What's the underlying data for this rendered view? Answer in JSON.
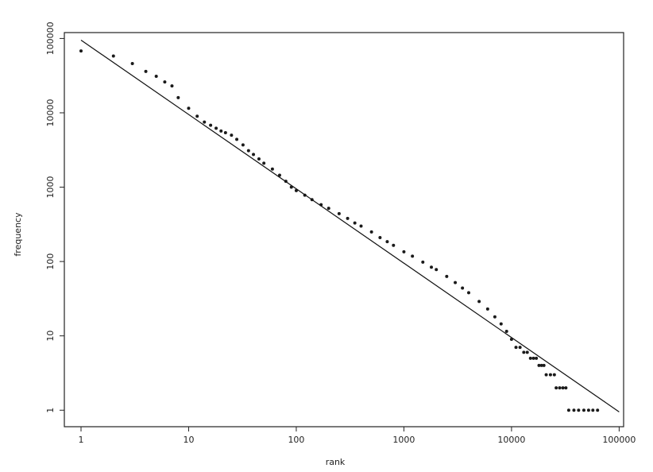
{
  "chart_data": {
    "type": "scatter",
    "title": "",
    "xlabel": "rank",
    "ylabel": "frequency",
    "xscale": "log",
    "yscale": "log",
    "xlim": [
      0.7,
      110000
    ],
    "ylim": [
      0.6,
      120000
    ],
    "grid": false,
    "legend": "none",
    "colors": {
      "points": "#1a1a1a",
      "line": "#111111",
      "frame": "#222222"
    },
    "x_ticks": [
      {
        "value": 1,
        "label": "1"
      },
      {
        "value": 10,
        "label": "10"
      },
      {
        "value": 100,
        "label": "100"
      },
      {
        "value": 1000,
        "label": "1000"
      },
      {
        "value": 10000,
        "label": "10000"
      },
      {
        "value": 100000,
        "label": "100000"
      }
    ],
    "y_ticks": [
      {
        "value": 1,
        "label": "1"
      },
      {
        "value": 10,
        "label": "10"
      },
      {
        "value": 100,
        "label": "100"
      },
      {
        "value": 1000,
        "label": "1000"
      },
      {
        "value": 10000,
        "label": "10000"
      },
      {
        "value": 100000,
        "label": "100000"
      }
    ],
    "fit_line": {
      "x": [
        1,
        100000
      ],
      "y": [
        95000,
        0.95
      ]
    },
    "series": [
      {
        "points": [
          [
            1,
            68000
          ],
          [
            2,
            58000
          ],
          [
            3,
            46000
          ],
          [
            4,
            36000
          ],
          [
            5,
            31000
          ],
          [
            6,
            26000
          ],
          [
            7,
            23000
          ],
          [
            8,
            16000
          ],
          [
            10,
            11500
          ],
          [
            12,
            9000
          ],
          [
            14,
            7500
          ],
          [
            16,
            6800
          ],
          [
            18,
            6200
          ],
          [
            20,
            5700
          ],
          [
            22,
            5400
          ],
          [
            25,
            5000
          ],
          [
            28,
            4400
          ],
          [
            32,
            3700
          ],
          [
            36,
            3100
          ],
          [
            40,
            2750
          ],
          [
            45,
            2400
          ],
          [
            50,
            2100
          ],
          [
            60,
            1750
          ],
          [
            70,
            1450
          ],
          [
            80,
            1200
          ],
          [
            90,
            1000
          ],
          [
            100,
            900
          ],
          [
            120,
            780
          ],
          [
            140,
            680
          ],
          [
            170,
            580
          ],
          [
            200,
            520
          ],
          [
            250,
            440
          ],
          [
            300,
            380
          ],
          [
            350,
            330
          ],
          [
            400,
            300
          ],
          [
            500,
            250
          ],
          [
            600,
            210
          ],
          [
            700,
            185
          ],
          [
            800,
            165
          ],
          [
            1000,
            135
          ],
          [
            1200,
            118
          ],
          [
            1500,
            98
          ],
          [
            1800,
            84
          ],
          [
            2000,
            78
          ],
          [
            2500,
            63
          ],
          [
            3000,
            52
          ],
          [
            3500,
            44
          ],
          [
            4000,
            38
          ],
          [
            5000,
            29
          ],
          [
            6000,
            23
          ],
          [
            7000,
            18
          ],
          [
            8000,
            14.5
          ],
          [
            9000,
            11.5
          ],
          [
            10000,
            9
          ],
          [
            11000,
            7
          ],
          [
            12000,
            7
          ],
          [
            13000,
            6
          ],
          [
            14000,
            6
          ],
          [
            15000,
            5
          ],
          [
            16000,
            5
          ],
          [
            17000,
            5
          ],
          [
            18000,
            4
          ],
          [
            19000,
            4
          ],
          [
            20000,
            4
          ],
          [
            21000,
            3
          ],
          [
            23000,
            3
          ],
          [
            25000,
            3
          ],
          [
            26000,
            2
          ],
          [
            28000,
            2
          ],
          [
            30000,
            2
          ],
          [
            32000,
            2
          ],
          [
            34000,
            1
          ],
          [
            38000,
            1
          ],
          [
            42000,
            1
          ],
          [
            47000,
            1
          ],
          [
            52000,
            1
          ],
          [
            57000,
            1
          ],
          [
            63000,
            1
          ]
        ]
      }
    ]
  }
}
